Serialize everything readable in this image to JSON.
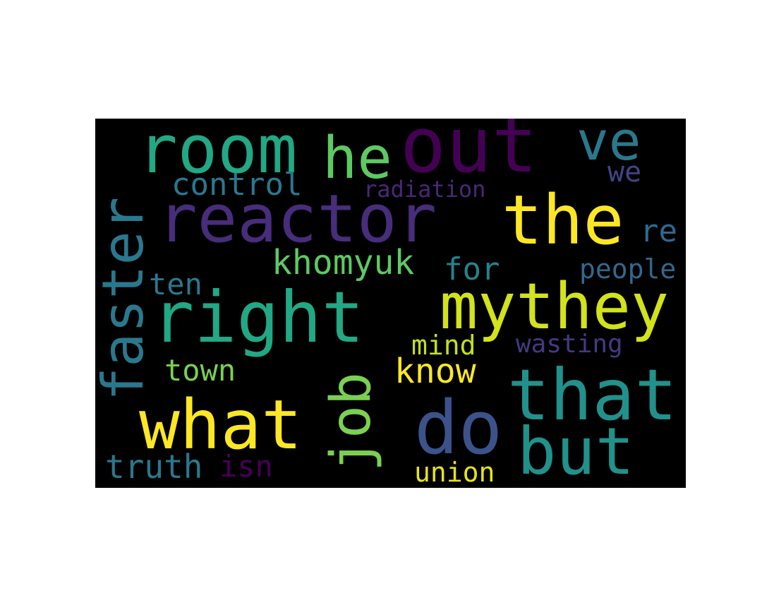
{
  "word_cloud": {
    "words": [
      {
        "text": "room",
        "color": "#22a884"
      },
      {
        "text": "he",
        "color": "#5ec962"
      },
      {
        "text": "out",
        "color": "#440154"
      },
      {
        "text": "ve",
        "color": "#2a788e"
      },
      {
        "text": "we",
        "color": "#414487"
      },
      {
        "text": "control",
        "color": "#2a788e"
      },
      {
        "text": "radiation",
        "color": "#482878"
      },
      {
        "text": "reactor",
        "color": "#472d7b"
      },
      {
        "text": "the",
        "color": "#fde725"
      },
      {
        "text": "re",
        "color": "#31688e"
      },
      {
        "text": "faster",
        "color": "#2a788e"
      },
      {
        "text": "khomyuk",
        "color": "#5ec962"
      },
      {
        "text": "for",
        "color": "#26828e"
      },
      {
        "text": "people",
        "color": "#31688e"
      },
      {
        "text": "ten",
        "color": "#2a788e"
      },
      {
        "text": "right",
        "color": "#22a884"
      },
      {
        "text": "mythey",
        "color": "#d2e21b"
      },
      {
        "text": "mind",
        "color": "#c2df23"
      },
      {
        "text": "wasting",
        "color": "#443983"
      },
      {
        "text": "town",
        "color": "#7ad151"
      },
      {
        "text": "job",
        "color": "#7ad151"
      },
      {
        "text": "know",
        "color": "#fde725"
      },
      {
        "text": "that",
        "color": "#21918c"
      },
      {
        "text": "what",
        "color": "#fde725"
      },
      {
        "text": "do",
        "color": "#3b528b"
      },
      {
        "text": "but",
        "color": "#21918c"
      },
      {
        "text": "truth",
        "color": "#2a788e"
      },
      {
        "text": "isn",
        "color": "#440154"
      },
      {
        "text": "union",
        "color": "#e5e419"
      }
    ]
  }
}
